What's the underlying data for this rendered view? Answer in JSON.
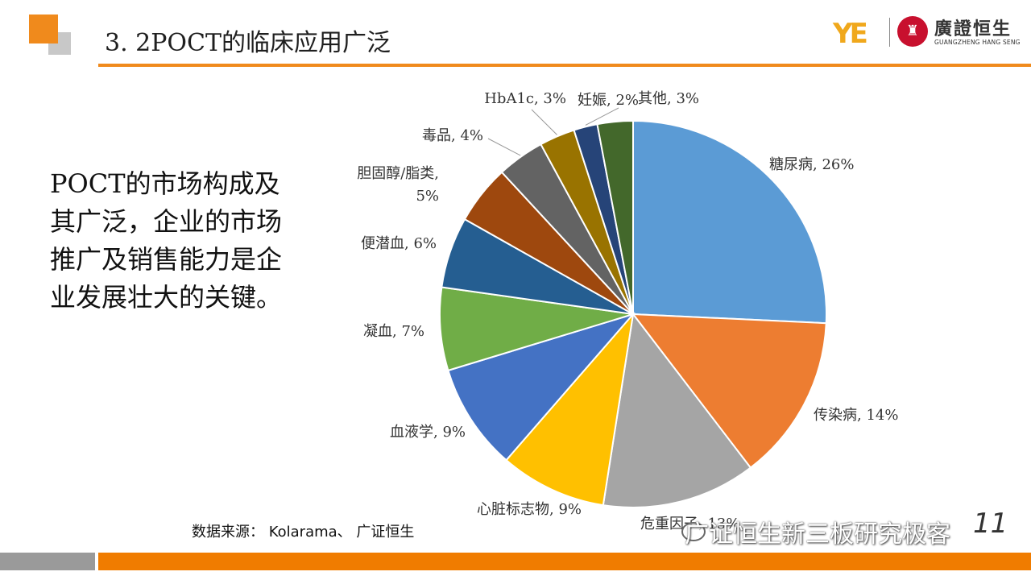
{
  "header": {
    "title": "3. 2POCT的临床应用广泛",
    "logo_name": "廣證恒生",
    "logo_en": "GUANGZHENG HANG SENG"
  },
  "side_text": "POCT的市场构成及其广泛，企业的市场推广及销售能力是企业发展壮大的关键。",
  "source": "数据来源： Kolarama、 广证恒生",
  "watermark": "广证恒生新三板研究极客",
  "page_number": "11",
  "colors": {
    "accent_orange": "#f08a1c",
    "footer_orange": "#f07c00",
    "footer_gray": "#9a9a9a"
  },
  "chart_data": {
    "type": "pie",
    "start": "12 o'clock, clockwise",
    "slices": [
      {
        "name": "糖尿病",
        "value": 26,
        "label": "糖尿病, 26%",
        "color": "#5b9bd5"
      },
      {
        "name": "传染病",
        "value": 14,
        "label": "传染病, 14%",
        "color": "#ed7d31"
      },
      {
        "name": "危重因子",
        "value": 13,
        "label": "危重因子, 13%",
        "color": "#a5a5a5"
      },
      {
        "name": "心脏标志物",
        "value": 9,
        "label": "心脏标志物, 9%",
        "color": "#ffc000"
      },
      {
        "name": "血液学",
        "value": 9,
        "label": "血液学, 9%",
        "color": "#4472c4"
      },
      {
        "name": "凝血",
        "value": 7,
        "label": "凝血, 7%",
        "color": "#70ad47"
      },
      {
        "name": "便潜血",
        "value": 6,
        "label": "便潜血, 6%",
        "color": "#255e91"
      },
      {
        "name": "胆固醇/脂类",
        "value": 5,
        "label": "胆固醇/脂类, 5%",
        "color": "#9e480e"
      },
      {
        "name": "毒品",
        "value": 4,
        "label": "毒品, 4%",
        "color": "#636363"
      },
      {
        "name": "HbA1c",
        "value": 3,
        "label": "HbA1c, 3%",
        "color": "#997300"
      },
      {
        "name": "妊娠",
        "value": 2,
        "label": "妊娠, 2%",
        "color": "#264478"
      },
      {
        "name": "其他",
        "value": 3,
        "label": "其他, 3%",
        "color": "#43682b"
      }
    ]
  }
}
